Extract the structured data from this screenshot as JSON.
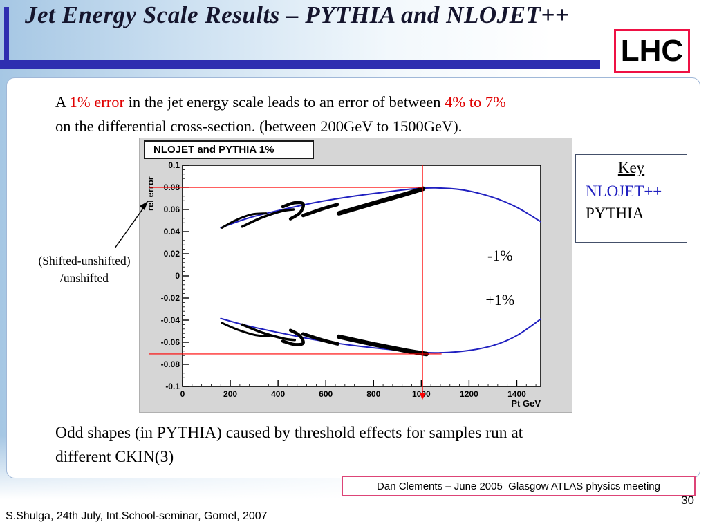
{
  "slide": {
    "title": "Jet Energy Scale Results – PYTHIA and NLOJET++",
    "badge": "LHC",
    "page_number": "30",
    "footer": "S.Shulga, 24th July, Int.School-seminar, Gomel, 2007",
    "credit": "Dan Clements – June 2005  Glasgow ATLAS physics meeting"
  },
  "colors": {
    "accent_bar": "#2e2eb0",
    "red_text": "#e00000",
    "lhc_border": "#ee1144",
    "credit_border": "#dd4477",
    "nlojet_blue": "#2020c0",
    "pythia_black": "#000000",
    "reference_red": "#ff0000"
  },
  "paragraph": {
    "p1": "A ",
    "red1": "1% error",
    "p2": " in the jet energy scale leads to an error of between ",
    "red2": "4% to 7%",
    "p3": "on the differential cross-section. (between 200GeV to 1500GeV)."
  },
  "note": {
    "line1": "Odd shapes (in PYTHIA) caused by threshold effects for samples run at",
    "line2": "different CKIN(3)"
  },
  "axis_annotation": {
    "line1": "(Shifted-unshifted)",
    "line2": "/unshifted"
  },
  "legend": {
    "title": "Key",
    "items": [
      {
        "label": "NLOJET++",
        "color": "#2020c0"
      },
      {
        "label": "PYTHIA",
        "color": "#000000"
      }
    ]
  },
  "chart_data": {
    "type": "line",
    "title": "NLOJET and PYTHIA 1%",
    "xlabel": "Pt  GeV",
    "ylabel": "rel error",
    "xlim": [
      0,
      1500
    ],
    "ylim": [
      -0.1,
      0.1
    ],
    "xticks": [
      0,
      200,
      400,
      600,
      800,
      1000,
      1200,
      1400
    ],
    "yticks": [
      0.1,
      0.08,
      0.06,
      0.04,
      0.02,
      0,
      -0.02,
      -0.04,
      -0.06,
      -0.08,
      -0.1
    ],
    "annotations": [
      {
        "text": "-1%",
        "x": 1330,
        "y": 0.018
      },
      {
        "text": "+1%",
        "x": 1330,
        "y": -0.022
      }
    ],
    "reference_lines": {
      "horizontal": [
        {
          "y": 0.08,
          "x_start": -140,
          "x_end": 1005
        },
        {
          "y": -0.0706,
          "x_start": -140,
          "x_end": 1085
        }
      ],
      "vertical_arrow": {
        "x": 1005
      }
    },
    "series": [
      {
        "name": "nlojet-upper",
        "color": "#2020c0",
        "width": 2,
        "points": [
          [
            160,
            0.0435
          ],
          [
            280,
            0.0525
          ],
          [
            420,
            0.06
          ],
          [
            560,
            0.0665
          ],
          [
            700,
            0.0715
          ],
          [
            840,
            0.0755
          ],
          [
            960,
            0.0785
          ],
          [
            1060,
            0.0795
          ],
          [
            1180,
            0.0775
          ],
          [
            1300,
            0.071
          ],
          [
            1400,
            0.062
          ],
          [
            1500,
            0.049
          ]
        ]
      },
      {
        "name": "nlojet-lower",
        "color": "#2020c0",
        "width": 2,
        "points": [
          [
            160,
            -0.0385
          ],
          [
            280,
            -0.0455
          ],
          [
            420,
            -0.052
          ],
          [
            560,
            -0.058
          ],
          [
            700,
            -0.0625
          ],
          [
            840,
            -0.066
          ],
          [
            960,
            -0.0685
          ],
          [
            1060,
            -0.0695
          ],
          [
            1180,
            -0.068
          ],
          [
            1300,
            -0.063
          ],
          [
            1400,
            -0.054
          ],
          [
            1500,
            -0.039
          ]
        ]
      },
      {
        "name": "pythia-upper-1",
        "color": "#000000",
        "width": 3,
        "points": [
          [
            165,
            0.0435
          ],
          [
            225,
            0.0505
          ],
          [
            290,
            0.0555
          ],
          [
            350,
            0.0565
          ]
        ]
      },
      {
        "name": "pythia-upper-2",
        "color": "#000000",
        "width": 3.5,
        "points": [
          [
            250,
            0.0445
          ],
          [
            330,
            0.0525
          ],
          [
            415,
            0.0585
          ],
          [
            465,
            0.06
          ]
        ]
      },
      {
        "name": "pythia-upper-3",
        "color": "#000000",
        "width": 4.5,
        "points": [
          [
            420,
            0.0625
          ],
          [
            468,
            0.066
          ],
          [
            505,
            0.065
          ],
          [
            492,
            0.057
          ],
          [
            452,
            0.0515
          ]
        ]
      },
      {
        "name": "pythia-upper-4",
        "color": "#000000",
        "width": 5,
        "points": [
          [
            505,
            0.0545
          ],
          [
            585,
            0.0605
          ],
          [
            648,
            0.0645
          ]
        ]
      },
      {
        "name": "pythia-upper-5",
        "color": "#000000",
        "width": 6.5,
        "points": [
          [
            655,
            0.0565
          ],
          [
            790,
            0.065
          ],
          [
            920,
            0.073
          ],
          [
            1008,
            0.0788
          ]
        ]
      },
      {
        "name": "pythia-lower-1",
        "color": "#000000",
        "width": 3,
        "points": [
          [
            165,
            -0.0425
          ],
          [
            235,
            -0.049
          ],
          [
            305,
            -0.0535
          ],
          [
            365,
            -0.0545
          ]
        ]
      },
      {
        "name": "pythia-lower-2",
        "color": "#000000",
        "width": 3.5,
        "points": [
          [
            250,
            -0.044
          ],
          [
            330,
            -0.051
          ],
          [
            420,
            -0.0565
          ],
          [
            470,
            -0.058
          ]
        ]
      },
      {
        "name": "pythia-lower-3",
        "color": "#000000",
        "width": 4.5,
        "points": [
          [
            420,
            -0.059
          ],
          [
            468,
            -0.062
          ],
          [
            505,
            -0.0608
          ],
          [
            490,
            -0.0538
          ],
          [
            452,
            -0.0492
          ]
        ]
      },
      {
        "name": "pythia-lower-4",
        "color": "#000000",
        "width": 5,
        "points": [
          [
            505,
            -0.0525
          ],
          [
            588,
            -0.0582
          ],
          [
            650,
            -0.0615
          ]
        ]
      },
      {
        "name": "pythia-lower-5",
        "color": "#000000",
        "width": 6.5,
        "points": [
          [
            655,
            -0.055
          ],
          [
            800,
            -0.0618
          ],
          [
            940,
            -0.0678
          ],
          [
            1022,
            -0.0706
          ]
        ]
      }
    ]
  }
}
